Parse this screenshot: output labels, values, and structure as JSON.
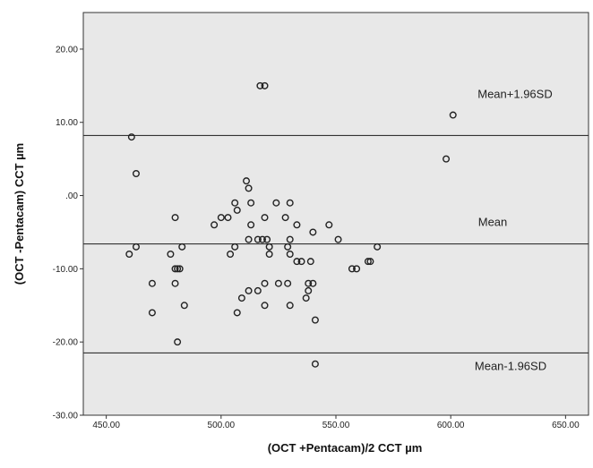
{
  "chart_data": {
    "type": "scatter",
    "title": "",
    "xlabel": "(OCT +Pentacam)/2 CCT µm",
    "ylabel": "(OCT -Pentacam) CCT µm",
    "xlim": [
      440,
      660
    ],
    "ylim": [
      -30,
      25
    ],
    "x_ticks": [
      "450.00",
      "500.00",
      "550.00",
      "600.00",
      "650.00"
    ],
    "y_ticks": [
      "20.00",
      "10.00",
      ".00",
      "-10.00",
      "-20.00",
      "-30.00"
    ],
    "grid": false,
    "background_color": "#e8e8e8",
    "marker_color": "#222222",
    "reference_lines": [
      {
        "label": "Mean+1.96SD",
        "y": 8.2
      },
      {
        "label": "Mean",
        "y": -6.6
      },
      {
        "label": "Mean-1.96SD",
        "y": -21.5
      }
    ],
    "points": [
      {
        "x": 461,
        "y": 8
      },
      {
        "x": 463,
        "y": 3
      },
      {
        "x": 460,
        "y": -8
      },
      {
        "x": 463,
        "y": -7
      },
      {
        "x": 470,
        "y": -12
      },
      {
        "x": 470,
        "y": -16
      },
      {
        "x": 478,
        "y": -8
      },
      {
        "x": 480,
        "y": -3
      },
      {
        "x": 480,
        "y": -10
      },
      {
        "x": 481,
        "y": -10
      },
      {
        "x": 480,
        "y": -12
      },
      {
        "x": 482,
        "y": -10
      },
      {
        "x": 483,
        "y": -7
      },
      {
        "x": 484,
        "y": -15
      },
      {
        "x": 481,
        "y": -20
      },
      {
        "x": 497,
        "y": -4
      },
      {
        "x": 500,
        "y": -3
      },
      {
        "x": 503,
        "y": -3
      },
      {
        "x": 506,
        "y": -1
      },
      {
        "x": 507,
        "y": -2
      },
      {
        "x": 504,
        "y": -8
      },
      {
        "x": 506,
        "y": -7
      },
      {
        "x": 507,
        "y": -16
      },
      {
        "x": 509,
        "y": -14
      },
      {
        "x": 511,
        "y": 2
      },
      {
        "x": 512,
        "y": 1
      },
      {
        "x": 513,
        "y": -1
      },
      {
        "x": 513,
        "y": -4
      },
      {
        "x": 512,
        "y": -6
      },
      {
        "x": 512,
        "y": -13
      },
      {
        "x": 516,
        "y": -6
      },
      {
        "x": 516,
        "y": -13
      },
      {
        "x": 517,
        "y": 15
      },
      {
        "x": 519,
        "y": 15
      },
      {
        "x": 518,
        "y": -6
      },
      {
        "x": 519,
        "y": -3
      },
      {
        "x": 519,
        "y": -12
      },
      {
        "x": 519,
        "y": -15
      },
      {
        "x": 520,
        "y": -6
      },
      {
        "x": 521,
        "y": -7
      },
      {
        "x": 521,
        "y": -8
      },
      {
        "x": 524,
        "y": -1
      },
      {
        "x": 525,
        "y": -12
      },
      {
        "x": 528,
        "y": -3
      },
      {
        "x": 529,
        "y": -7
      },
      {
        "x": 529,
        "y": -12
      },
      {
        "x": 530,
        "y": -1
      },
      {
        "x": 530,
        "y": -6
      },
      {
        "x": 530,
        "y": -8
      },
      {
        "x": 530,
        "y": -15
      },
      {
        "x": 533,
        "y": -4
      },
      {
        "x": 533,
        "y": -9
      },
      {
        "x": 535,
        "y": -9
      },
      {
        "x": 537,
        "y": -14
      },
      {
        "x": 538,
        "y": -13
      },
      {
        "x": 538,
        "y": -12
      },
      {
        "x": 539,
        "y": -9
      },
      {
        "x": 540,
        "y": -12
      },
      {
        "x": 540,
        "y": -5
      },
      {
        "x": 541,
        "y": -17
      },
      {
        "x": 541,
        "y": -23
      },
      {
        "x": 547,
        "y": -4
      },
      {
        "x": 551,
        "y": -6
      },
      {
        "x": 557,
        "y": -10
      },
      {
        "x": 559,
        "y": -10
      },
      {
        "x": 564,
        "y": -9
      },
      {
        "x": 565,
        "y": -9
      },
      {
        "x": 568,
        "y": -7
      },
      {
        "x": 598,
        "y": 5
      },
      {
        "x": 601,
        "y": 11
      }
    ]
  }
}
